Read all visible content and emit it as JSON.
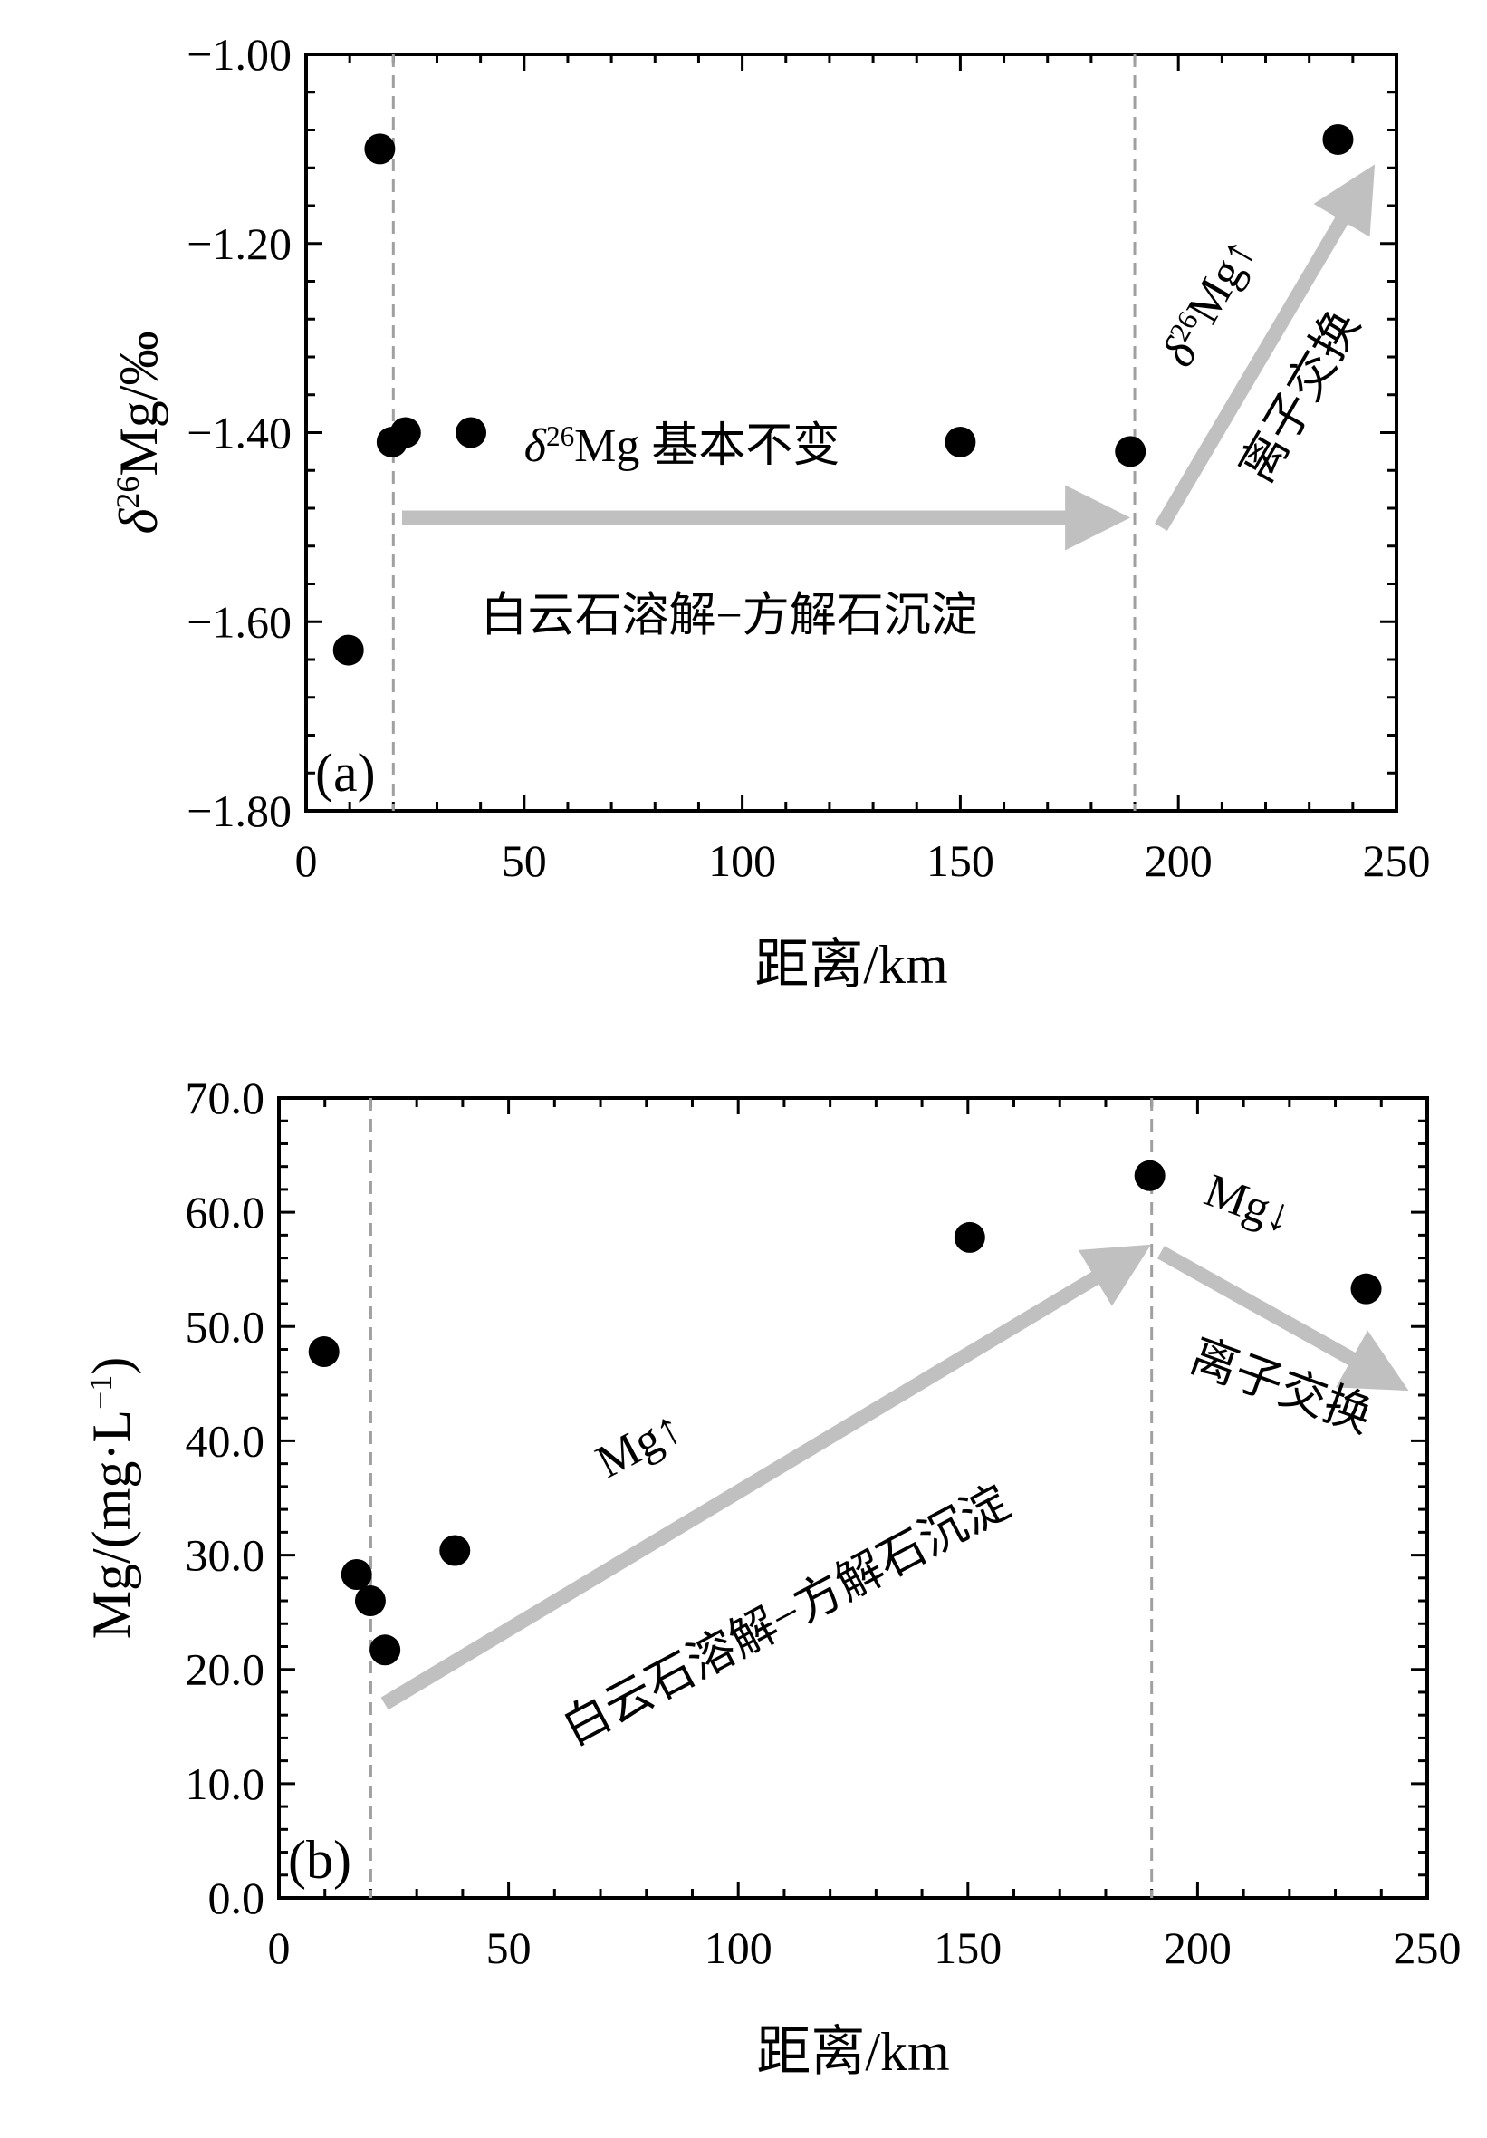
{
  "chart_data": [
    {
      "type": "scatter",
      "panel_label": "(a)",
      "xlabel": "距离/km",
      "ylabel": "δ26Mg/‰",
      "ylabel_parts": {
        "delta": "δ",
        "sup": "26",
        "rest": "Mg/‰"
      },
      "xlim": [
        0,
        250
      ],
      "ylim": [
        -1.8,
        -1.0
      ],
      "xticks": [
        "0",
        "50",
        "100",
        "150",
        "200",
        "250"
      ],
      "yticks": [
        "−1.80",
        "−1.60",
        "−1.40",
        "−1.20",
        "−1.00"
      ],
      "x": [
        9.7,
        16.9,
        19.7,
        22.8,
        37.8,
        150.0,
        189.0,
        236.6
      ],
      "y": [
        -1.63,
        -1.1,
        -1.41,
        -1.4,
        -1.4,
        -1.41,
        -1.42,
        -1.09
      ],
      "vlines": [
        20,
        190
      ],
      "annotations": {
        "flat": {
          "delta": "δ",
          "sup": "26",
          "rest": "Mg 基本不变"
        },
        "process1": "白云石溶解−方解石沉淀",
        "rise": {
          "delta": "δ",
          "sup": "26",
          "rest": "Mg↑"
        },
        "process2": "离子交换"
      },
      "colors": {
        "points": "#000000",
        "arrows": "#c0c0c0",
        "vlines": "#a0a0a0"
      }
    },
    {
      "type": "scatter",
      "panel_label": "(b)",
      "xlabel": "距离/km",
      "ylabel": "Mg/(mg·L−1)",
      "ylabel_parts": {
        "base": "Mg/(mg·L",
        "sup": "−1",
        "close": ")"
      },
      "xlim": [
        0,
        250
      ],
      "ylim": [
        0,
        70
      ],
      "xticks": [
        "0",
        "50",
        "100",
        "150",
        "200",
        "250"
      ],
      "yticks": [
        "0.0",
        "10.0",
        "20.0",
        "30.0",
        "40.0",
        "50.0",
        "60.0",
        "70.0"
      ],
      "x": [
        9.8,
        16.9,
        19.9,
        23.1,
        38.3,
        150.4,
        189.6,
        236.7
      ],
      "y": [
        47.8,
        28.3,
        26.0,
        21.7,
        30.4,
        57.8,
        63.2,
        53.3
      ],
      "vlines": [
        20,
        190
      ],
      "annotations": {
        "rise": "Mg↑",
        "process1": "白云石溶解−方解石沉淀",
        "fall": "Mg↓",
        "process2": "离子交换"
      },
      "colors": {
        "points": "#000000",
        "arrows": "#c0c0c0",
        "vlines": "#a0a0a0"
      }
    }
  ]
}
